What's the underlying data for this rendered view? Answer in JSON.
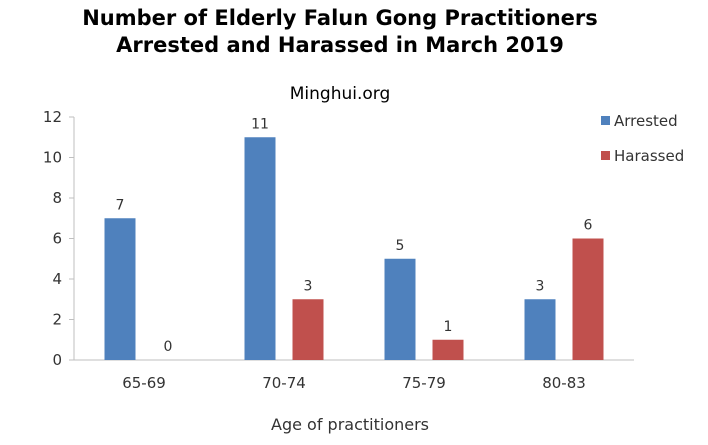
{
  "chart_data": {
    "type": "bar",
    "title_line1": "Number of Elderly Falun Gong Practitioners",
    "title_line2": "Arrested and Harassed in March 2019",
    "subtitle": "Minghui.org",
    "xlabel": "Age of practitioners",
    "ylabel": "",
    "ylim": [
      0,
      12
    ],
    "yticks": [
      0,
      2,
      4,
      6,
      8,
      10,
      12
    ],
    "grid": false,
    "legend_position": "top-right",
    "categories": [
      "65-69",
      "70-74",
      "75-79",
      "80-83"
    ],
    "series": [
      {
        "name": "Arrested",
        "color": "#4F81BD",
        "values": [
          7,
          11,
          5,
          3
        ]
      },
      {
        "name": "Harassed",
        "color": "#C0504D",
        "values": [
          0,
          3,
          1,
          6
        ]
      }
    ]
  }
}
